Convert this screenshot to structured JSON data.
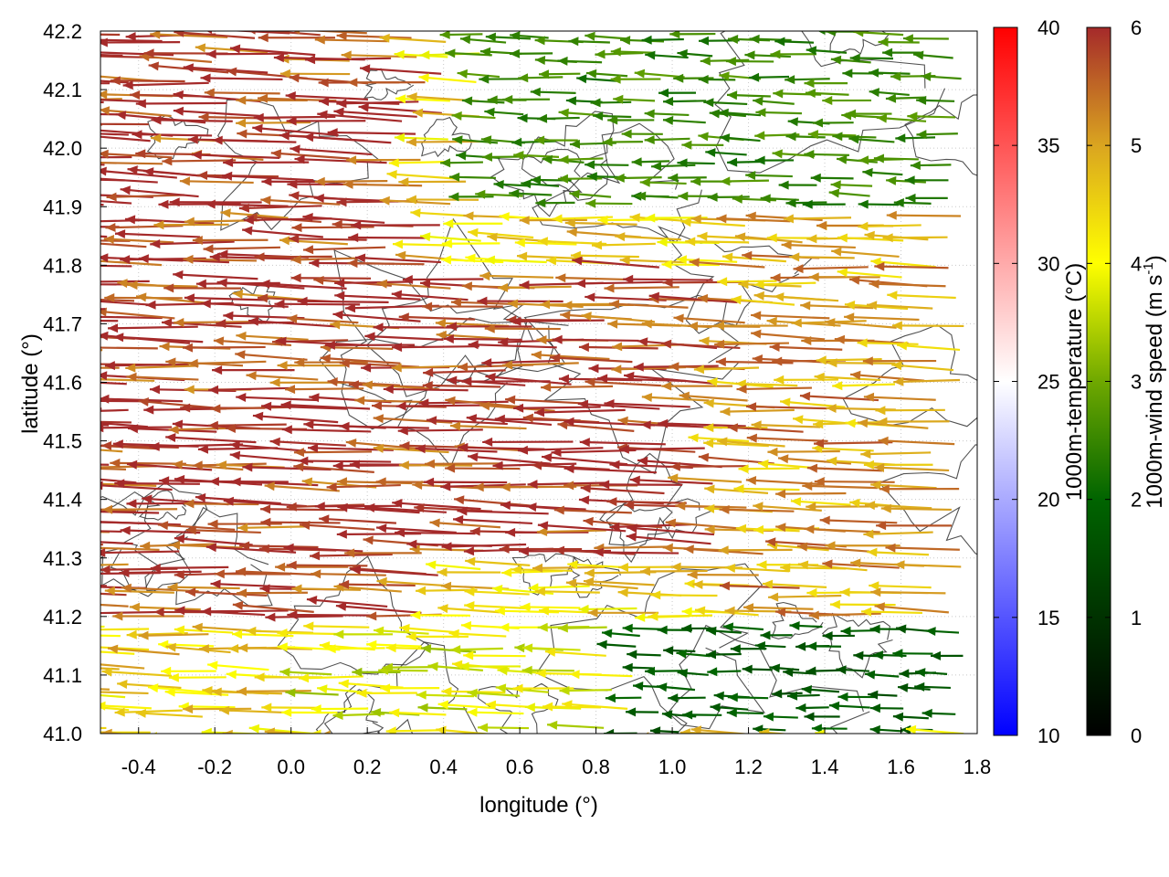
{
  "chart_data": {
    "type": "vector-field",
    "title": "",
    "xlabel": "longitude (°)",
    "ylabel": "latitude (°)",
    "xlim": [
      -0.5,
      1.8
    ],
    "ylim": [
      41.0,
      42.2
    ],
    "xticks": [
      -0.4,
      -0.2,
      0.0,
      0.2,
      0.4,
      0.6,
      0.8,
      1.0,
      1.2,
      1.4,
      1.6,
      1.8
    ],
    "xtick_labels": [
      "-0.4",
      "-0.2",
      "0.0",
      "0.2",
      "0.4",
      "0.6",
      "0.8",
      "1.0",
      "1.2",
      "1.4",
      "1.6",
      "1.8"
    ],
    "yticks": [
      41.0,
      41.1,
      41.2,
      41.3,
      41.4,
      41.5,
      41.6,
      41.7,
      41.8,
      41.9,
      42.0,
      42.1,
      42.2
    ],
    "ytick_labels": [
      "41.0",
      "41.1",
      "41.2",
      "41.3",
      "41.4",
      "41.5",
      "41.6",
      "41.7",
      "41.8",
      "41.9",
      "42.0",
      "42.1",
      "42.2"
    ],
    "grid": true,
    "wind_direction": "easterly (arrows point west)",
    "vector_regions": [
      {
        "name": "strong-west",
        "lon": [
          -0.5,
          0.4
        ],
        "lat": [
          41.2,
          42.2
        ],
        "speed": 6.0
      },
      {
        "name": "strong-central",
        "lon": [
          0.4,
          1.2
        ],
        "lat": [
          41.3,
          41.8
        ],
        "speed": 6.0
      },
      {
        "name": "weak-northeast",
        "lon": [
          0.5,
          1.8
        ],
        "lat": [
          41.9,
          42.2
        ],
        "speed": 2.5
      },
      {
        "name": "weak-southeast",
        "lon": [
          0.9,
          1.8
        ],
        "lat": [
          41.0,
          41.2
        ],
        "speed": 1.8
      },
      {
        "name": "moderate-east",
        "lon": [
          1.2,
          1.8
        ],
        "lat": [
          41.2,
          41.9
        ],
        "speed": 5.0
      },
      {
        "name": "moderate-south",
        "lon": [
          0.1,
          0.9
        ],
        "lat": [
          41.0,
          41.2
        ],
        "speed": 3.8
      }
    ],
    "colorbars": [
      {
        "label": "1000m-temperature (°C)",
        "range": [
          10,
          40
        ],
        "ticks": [
          10,
          15,
          20,
          25,
          30,
          35,
          40
        ],
        "tick_labels": [
          "10",
          "15",
          "20",
          "25",
          "30",
          "35",
          "40"
        ],
        "colors": [
          "#0000ff",
          "#ffffff",
          "#ff0000"
        ]
      },
      {
        "label_main": "1000m-wind speed (m s",
        "label_sup": "-1",
        "label_end": ")",
        "range": [
          0,
          6
        ],
        "ticks": [
          0,
          1,
          2,
          3,
          4,
          5,
          6
        ],
        "tick_labels": [
          "0",
          "1",
          "2",
          "3",
          "4",
          "5",
          "6"
        ],
        "colors": [
          "#000000",
          "#006400",
          "#6fa800",
          "#ffff00",
          "#daa520",
          "#a52a2a"
        ]
      }
    ]
  }
}
